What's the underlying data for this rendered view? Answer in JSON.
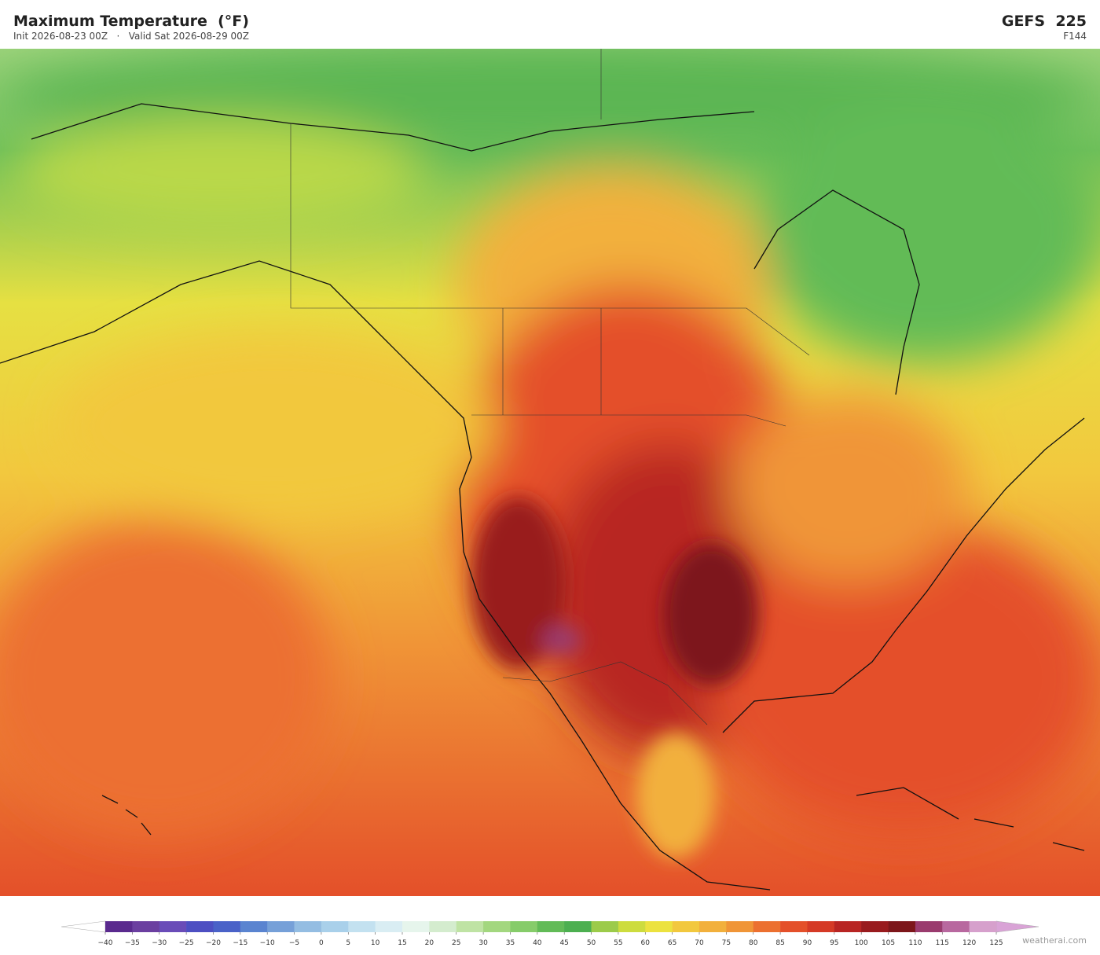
{
  "header": {
    "title": "Maximum Temperature  (°F)",
    "subtitle": "Init 2026-08-23 00Z   ·   Valid Sat 2026-08-29 00Z",
    "model": "GEFS  225",
    "forecast_hour": "F144"
  },
  "colorbar": {
    "ticks": [
      {
        "value": -40,
        "label": "−40"
      },
      {
        "value": -35,
        "label": "−35"
      },
      {
        "value": -30,
        "label": "−30"
      },
      {
        "value": -25,
        "label": "−25"
      },
      {
        "value": -20,
        "label": "−20"
      },
      {
        "value": -15,
        "label": "−15"
      },
      {
        "value": -10,
        "label": "−10"
      },
      {
        "value": -5,
        "label": "−5"
      },
      0,
      5,
      10,
      15,
      20,
      25,
      30,
      35,
      40,
      45,
      50,
      55,
      60,
      65,
      70,
      75,
      80,
      85,
      90,
      95,
      100,
      105,
      110,
      115,
      120,
      125
    ],
    "colors": [
      "#5a2a8e",
      "#6b3fa0",
      "#6a4cb8",
      "#4d4fc2",
      "#4a62c8",
      "#5a84d0",
      "#76a0d8",
      "#94bde2",
      "#a9d0ea",
      "#c3e1f0",
      "#d9edf3",
      "#e6f5ec",
      "#d4ecce",
      "#bfe3a4",
      "#a3d77f",
      "#86cc6a",
      "#62bb57",
      "#4caf50",
      "#9ccb4a",
      "#cddc3e",
      "#ece23f",
      "#f2c83e",
      "#f2b03c",
      "#f09537",
      "#ec7030",
      "#e4502a",
      "#d53a26",
      "#b82523",
      "#991b1e",
      "#7d161a",
      "#9a3b6e",
      "#b8689f",
      "#d6a0cc"
    ],
    "under_color": "#ffffff",
    "over_color": "#d9a3d6"
  },
  "watermark": "weatherai.com"
}
